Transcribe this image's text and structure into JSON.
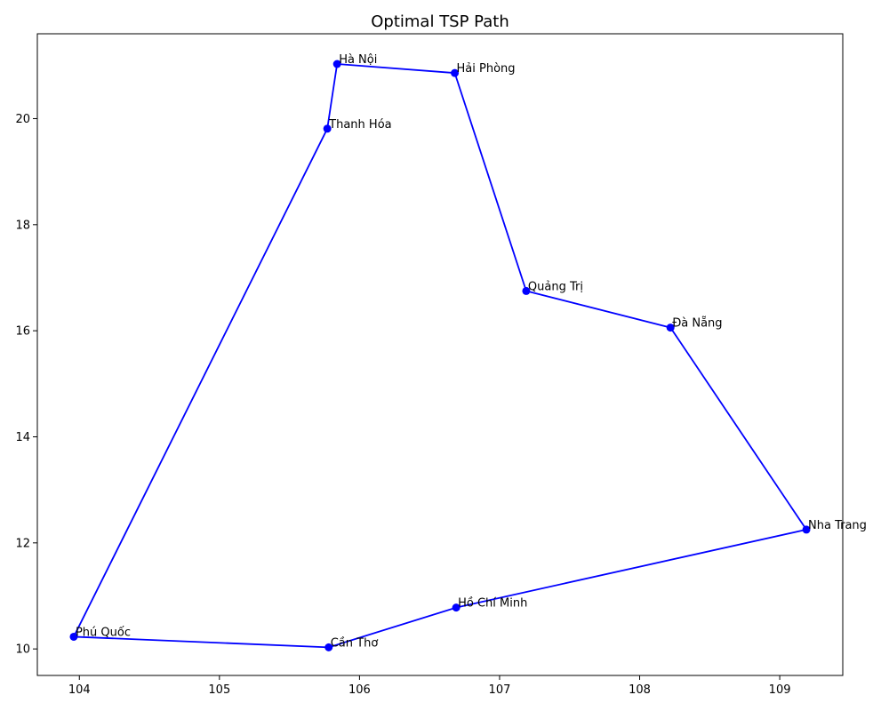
{
  "chart_data": {
    "type": "line",
    "title": "Optimal TSP Path",
    "xlabel": "",
    "ylabel": "",
    "xlim": [
      103.7,
      109.45
    ],
    "ylim": [
      9.5,
      21.6
    ],
    "xticks": [
      104,
      105,
      106,
      107,
      108,
      109
    ],
    "yticks": [
      10,
      12,
      14,
      16,
      18,
      20
    ],
    "grid": false,
    "line_color": "#0000ff",
    "marker_color": "#0000ff",
    "points": [
      {
        "label": "Hà Nội",
        "x": 105.84,
        "y": 21.03
      },
      {
        "label": "Hải Phòng",
        "x": 106.68,
        "y": 20.86
      },
      {
        "label": "Quảng Trị",
        "x": 107.19,
        "y": 16.75
      },
      {
        "label": "Đà Nẵng",
        "x": 108.22,
        "y": 16.06
      },
      {
        "label": "Nha Trang",
        "x": 109.19,
        "y": 12.25
      },
      {
        "label": "Hồ Chí Minh",
        "x": 106.69,
        "y": 10.78
      },
      {
        "label": "Cần Thơ",
        "x": 105.78,
        "y": 10.03
      },
      {
        "label": "Phú Quốc",
        "x": 103.96,
        "y": 10.23
      },
      {
        "label": "Thanh Hóa",
        "x": 105.77,
        "y": 19.81
      }
    ],
    "closed_path": true
  }
}
